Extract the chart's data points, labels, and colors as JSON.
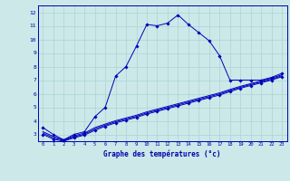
{
  "title": "Graphe des températures (°c)",
  "bg_color": "#cce8e8",
  "line_color": "#0000bb",
  "grid_color": "#aad4d4",
  "hours": [
    0,
    1,
    2,
    3,
    4,
    5,
    6,
    7,
    8,
    9,
    10,
    11,
    12,
    13,
    14,
    15,
    16,
    17,
    18,
    19,
    20,
    21,
    22,
    23
  ],
  "temp_main": [
    3.5,
    3.0,
    2.6,
    3.0,
    3.2,
    4.3,
    5.0,
    7.3,
    8.0,
    9.5,
    11.1,
    11.0,
    11.2,
    11.8,
    11.1,
    10.5,
    9.9,
    8.8,
    7.0,
    7.0,
    7.0,
    7.0,
    7.2,
    7.5
  ],
  "temp_line2": [
    3.0,
    2.65,
    2.5,
    2.75,
    2.95,
    3.3,
    3.6,
    3.85,
    4.05,
    4.25,
    4.5,
    4.7,
    4.9,
    5.1,
    5.3,
    5.5,
    5.7,
    5.9,
    6.15,
    6.4,
    6.6,
    6.8,
    7.0,
    7.25
  ],
  "temp_line3": [
    3.1,
    2.75,
    2.55,
    2.82,
    3.02,
    3.4,
    3.68,
    3.93,
    4.13,
    4.33,
    4.58,
    4.78,
    4.98,
    5.18,
    5.38,
    5.58,
    5.78,
    5.98,
    6.23,
    6.47,
    6.67,
    6.87,
    7.07,
    7.32
  ],
  "temp_line4": [
    3.2,
    2.85,
    2.6,
    2.9,
    3.1,
    3.5,
    3.76,
    4.01,
    4.21,
    4.41,
    4.66,
    4.86,
    5.06,
    5.26,
    5.46,
    5.66,
    5.86,
    6.06,
    6.31,
    6.54,
    6.74,
    6.94,
    7.14,
    7.39
  ],
  "ylim": [
    2.5,
    12.5
  ],
  "xlim": [
    -0.5,
    23.5
  ],
  "yticks": [
    3,
    4,
    5,
    6,
    7,
    8,
    9,
    10,
    11,
    12
  ],
  "x_labels": [
    "0",
    "1",
    "2",
    "3",
    "4",
    "5",
    "6",
    "7",
    "8",
    "9",
    "10",
    "11",
    "12",
    "13",
    "14",
    "15",
    "16",
    "17",
    "18",
    "19",
    "20",
    "21",
    "22",
    "23"
  ]
}
